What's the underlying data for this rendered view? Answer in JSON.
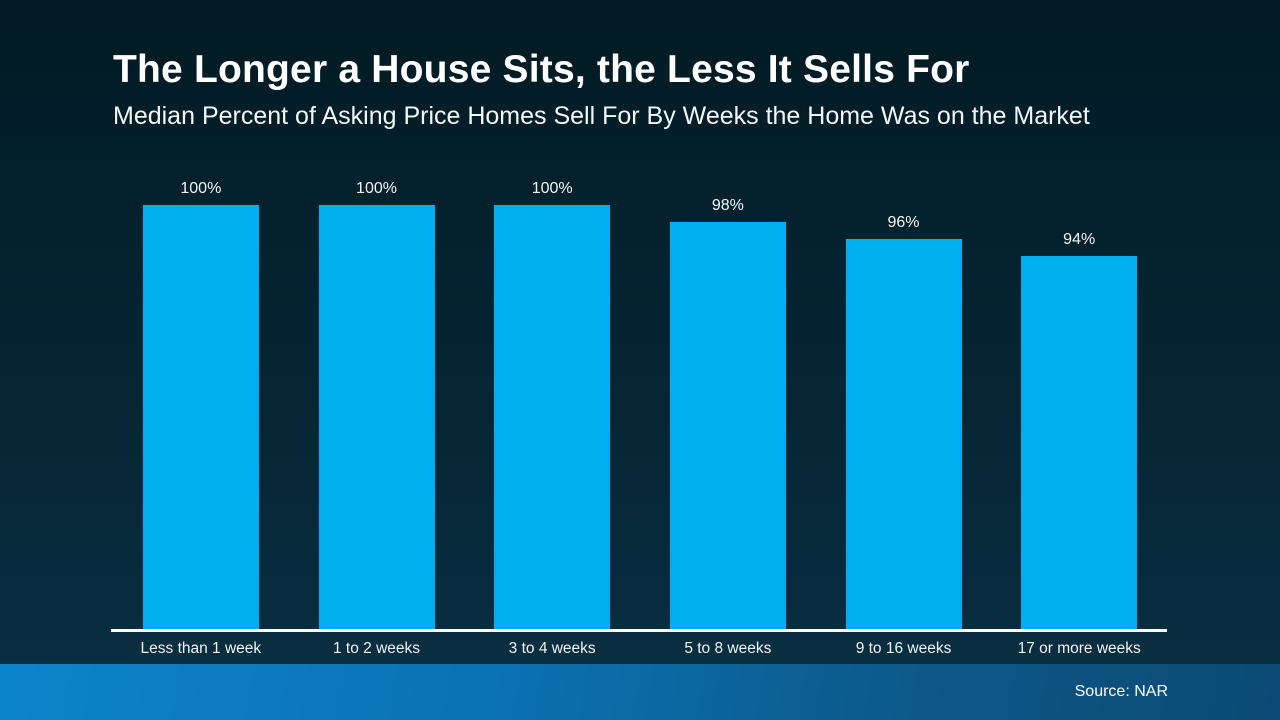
{
  "header": {
    "title": "The Longer a House Sits, the Less It Sells For",
    "subtitle": "Median Percent of Asking Price Homes Sell For By Weeks the Home Was on the Market"
  },
  "chart_data": {
    "type": "bar",
    "title": "The Longer a House Sits, the Less It Sells For",
    "subtitle": "Median Percent of Asking Price Homes Sell For By Weeks the Home Was on the Market",
    "categories": [
      "Less than 1 week",
      "1 to 2 weeks",
      "3 to 4 weeks",
      "5 to 8 weeks",
      "9 to 16 weeks",
      "17 or more weeks"
    ],
    "values": [
      100,
      100,
      100,
      98,
      96,
      94
    ],
    "value_labels": [
      "100%",
      "100%",
      "100%",
      "98%",
      "96%",
      "94%"
    ],
    "xlabel": "",
    "ylabel": "",
    "ylim": [
      50,
      100
    ],
    "grid": false,
    "legend": false,
    "bar_color": "#00AEEF",
    "axis_line_color": "#FFFFFF"
  },
  "footer": {
    "source": "Source: NAR"
  },
  "colors": {
    "background_top": "#021a23",
    "background_bottom": "#093044",
    "band_left": "#0c84cc",
    "band_right": "#0b4a75",
    "text": "#FFFFFF",
    "bar": "#00AEEF"
  }
}
